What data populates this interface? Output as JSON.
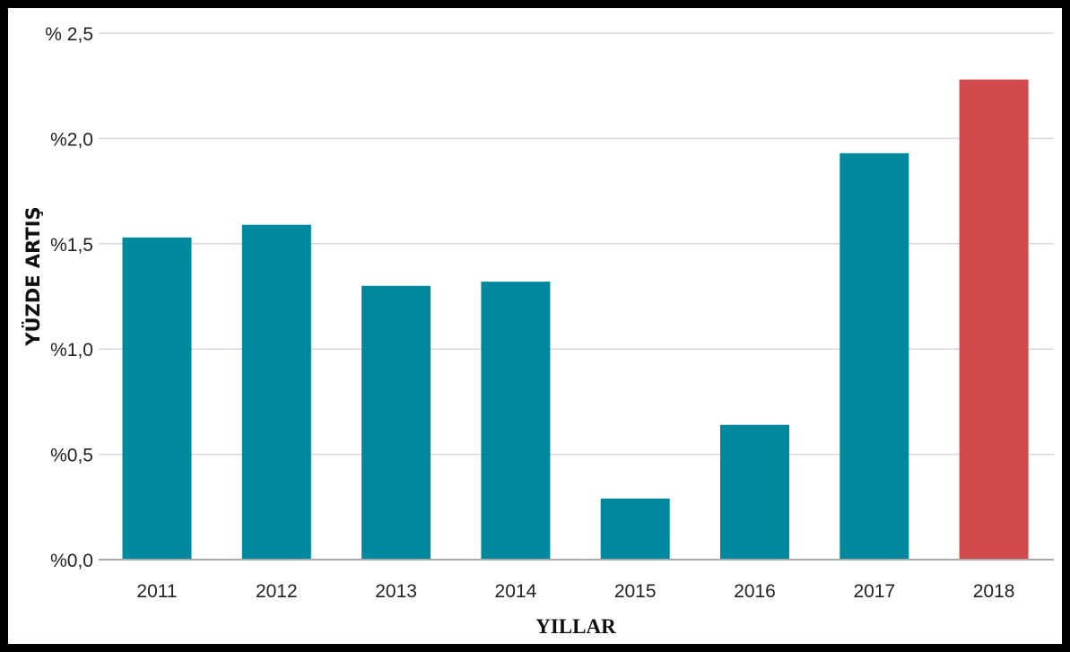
{
  "chart_data": {
    "type": "bar",
    "title": "",
    "xlabel": "YILLAR",
    "ylabel": "YÜZDE ARTIŞ",
    "categories": [
      "2011",
      "2012",
      "2013",
      "2014",
      "2015",
      "2016",
      "2017",
      "2018"
    ],
    "values": [
      1.53,
      1.59,
      1.3,
      1.32,
      0.29,
      0.64,
      1.93,
      2.28
    ],
    "ylim": [
      0,
      2.5
    ],
    "yticks": [
      0,
      0.5,
      1.0,
      1.5,
      2.0,
      2.5
    ],
    "ytick_labels": [
      "%0,0",
      "%0,5",
      "%1,0",
      "%1,5",
      "%2,0",
      "% 2,5"
    ],
    "grid": true,
    "legend": "none",
    "colors": {
      "default_bar": "#00889e",
      "highlight_bar": "#d1494b"
    },
    "highlight_index": 7
  }
}
